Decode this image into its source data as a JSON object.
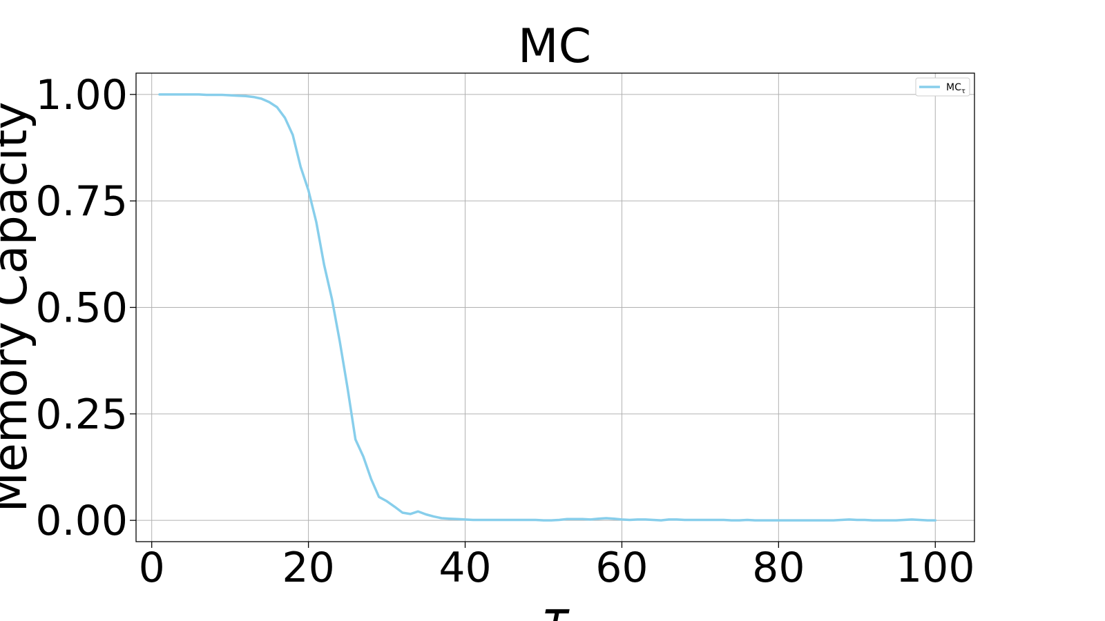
{
  "chart_data": {
    "type": "line",
    "title": "MC",
    "xlabel": "τ",
    "ylabel": "Memory Capacity",
    "xlim": [
      -2,
      105
    ],
    "ylim": [
      -0.05,
      1.05
    ],
    "xticks": [
      0,
      20,
      40,
      60,
      80,
      100
    ],
    "xtick_labels": [
      "0",
      "20",
      "40",
      "60",
      "80",
      "100"
    ],
    "yticks": [
      0.0,
      0.25,
      0.5,
      0.75,
      1.0
    ],
    "ytick_labels": [
      "0.00",
      "0.25",
      "0.50",
      "0.75",
      "1.00"
    ],
    "grid": true,
    "legend": {
      "placement": "top-right",
      "base": "MC",
      "sub": "τ"
    },
    "series": [
      {
        "name": "MCτ",
        "color": "#87CEEB",
        "x": [
          1,
          2,
          3,
          4,
          5,
          6,
          7,
          8,
          9,
          10,
          11,
          12,
          13,
          14,
          15,
          16,
          17,
          18,
          19,
          20,
          21,
          22,
          23,
          24,
          25,
          26,
          27,
          28,
          29,
          30,
          31,
          32,
          33,
          34,
          35,
          36,
          37,
          38,
          39,
          40,
          41,
          42,
          43,
          44,
          45,
          46,
          47,
          48,
          49,
          50,
          51,
          52,
          53,
          54,
          55,
          56,
          57,
          58,
          59,
          60,
          61,
          62,
          63,
          64,
          65,
          66,
          67,
          68,
          69,
          70,
          71,
          72,
          73,
          74,
          75,
          76,
          77,
          78,
          79,
          80,
          81,
          82,
          83,
          84,
          85,
          86,
          87,
          88,
          89,
          90,
          91,
          92,
          93,
          94,
          95,
          96,
          97,
          98,
          99,
          100
        ],
        "values": [
          1.0,
          1.0,
          1.0,
          1.0,
          1.0,
          1.0,
          0.999,
          0.999,
          0.999,
          0.998,
          0.997,
          0.996,
          0.994,
          0.99,
          0.982,
          0.97,
          0.945,
          0.905,
          0.83,
          0.775,
          0.7,
          0.6,
          0.52,
          0.42,
          0.31,
          0.19,
          0.15,
          0.097,
          0.055,
          0.045,
          0.032,
          0.018,
          0.015,
          0.021,
          0.014,
          0.009,
          0.005,
          0.004,
          0.003,
          0.002,
          0.001,
          0.001,
          0.001,
          0.001,
          0.001,
          0.001,
          0.001,
          0.001,
          0.001,
          0.0,
          0.0,
          0.001,
          0.003,
          0.003,
          0.003,
          0.002,
          0.004,
          0.005,
          0.004,
          0.002,
          0.001,
          0.002,
          0.002,
          0.001,
          0.0,
          0.002,
          0.002,
          0.001,
          0.001,
          0.001,
          0.001,
          0.001,
          0.001,
          0.0,
          0.0,
          0.001,
          0.0,
          0.0,
          0.0,
          0.0,
          0.0,
          0.0,
          0.0,
          0.0,
          0.0,
          0.0,
          0.0,
          0.001,
          0.002,
          0.001,
          0.001,
          0.0,
          0.0,
          0.0,
          0.0,
          0.001,
          0.002,
          0.001,
          0.0,
          0.0
        ]
      }
    ]
  }
}
